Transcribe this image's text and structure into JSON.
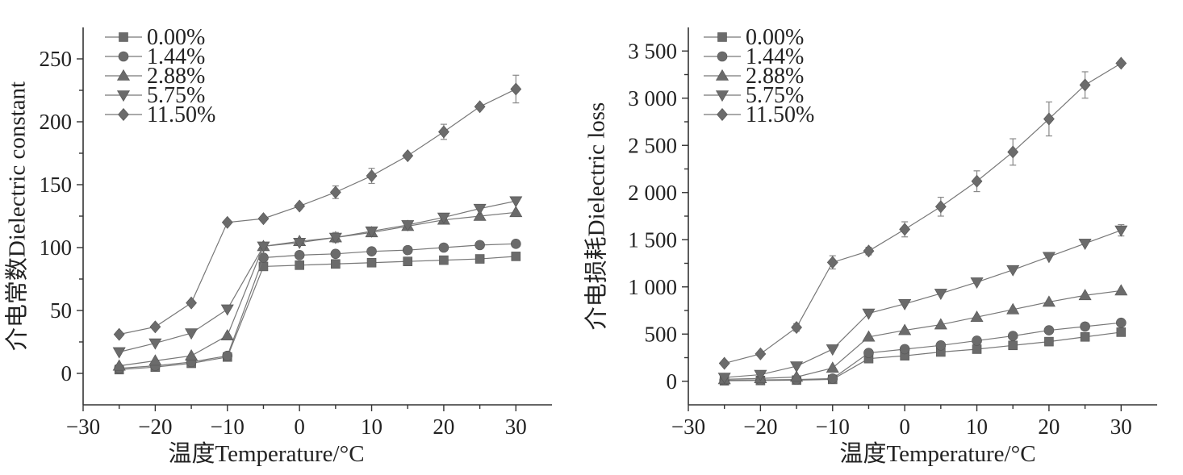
{
  "chart_data": [
    {
      "type": "line",
      "xlabel": "温度Temperature/°C",
      "ylabel": "介电常数Dielectric constant",
      "xlim": [
        -30,
        35
      ],
      "ylim": [
        -25,
        275
      ],
      "xticks": [
        -30,
        -20,
        -10,
        0,
        10,
        20,
        30
      ],
      "xtick_labels": [
        "−30",
        "−20",
        "−10",
        "0",
        "10",
        "20",
        "30"
      ],
      "yticks": [
        0,
        50,
        100,
        150,
        200,
        250
      ],
      "ytick_labels": [
        "0",
        "50",
        "100",
        "150",
        "200",
        "250"
      ],
      "legend_position": "top-left",
      "grid": false,
      "x": [
        -25,
        -20,
        -15,
        -10,
        -5,
        0,
        5,
        10,
        15,
        20,
        25,
        30
      ],
      "series": [
        {
          "name": "0.00%",
          "marker": "square",
          "values": [
            3,
            5,
            8,
            13,
            85,
            86,
            87,
            88,
            89,
            90,
            91,
            93
          ],
          "errors": [
            0,
            0,
            0,
            0,
            0,
            0,
            0,
            0,
            0,
            0,
            0,
            0
          ]
        },
        {
          "name": "1.44%",
          "marker": "circle",
          "values": [
            4,
            6,
            9,
            14,
            92,
            94,
            95,
            97,
            98,
            100,
            102,
            103
          ],
          "errors": [
            0,
            0,
            0,
            0,
            0,
            0,
            0,
            0,
            0,
            0,
            0,
            0
          ]
        },
        {
          "name": "2.88%",
          "marker": "triangle-up",
          "values": [
            6,
            10,
            14,
            30,
            101,
            105,
            108,
            112,
            117,
            122,
            125,
            128
          ],
          "errors": [
            0,
            0,
            0,
            0,
            0,
            0,
            0,
            0,
            0,
            0,
            0,
            0
          ]
        },
        {
          "name": "5.75%",
          "marker": "triangle-down",
          "values": [
            17,
            24,
            32,
            51,
            101,
            104,
            108,
            113,
            118,
            124,
            131,
            137
          ],
          "errors": [
            0,
            0,
            0,
            0,
            0,
            0,
            4,
            0,
            0,
            0,
            0,
            0
          ]
        },
        {
          "name": "11.50%",
          "marker": "diamond",
          "values": [
            31,
            37,
            56,
            120,
            123,
            133,
            144,
            157,
            173,
            192,
            212,
            226
          ],
          "errors": [
            0,
            0,
            0,
            0,
            0,
            0,
            5,
            6,
            0,
            6,
            0,
            11
          ]
        }
      ]
    },
    {
      "type": "line",
      "xlabel": "温度Temperature/°C",
      "ylabel": "介电损耗Dielectric loss",
      "xlim": [
        -30,
        35
      ],
      "ylim": [
        -250,
        3750
      ],
      "xticks": [
        -30,
        -20,
        -10,
        0,
        10,
        20,
        30
      ],
      "xtick_labels": [
        "−30",
        "−20",
        "−10",
        "0",
        "10",
        "20",
        "30"
      ],
      "yticks": [
        0,
        500,
        1000,
        1500,
        2000,
        2500,
        3000,
        3500
      ],
      "ytick_labels": [
        "0",
        "500",
        "1 000",
        "1 500",
        "2 000",
        "2 500",
        "3 000",
        "3 500"
      ],
      "legend_position": "top-left",
      "grid": false,
      "x": [
        -25,
        -20,
        -15,
        -10,
        -5,
        0,
        5,
        10,
        15,
        20,
        25,
        30
      ],
      "series": [
        {
          "name": "0.00%",
          "marker": "square",
          "values": [
            5,
            8,
            12,
            20,
            240,
            270,
            310,
            340,
            380,
            420,
            470,
            520
          ],
          "errors": [
            0,
            0,
            0,
            0,
            0,
            0,
            0,
            0,
            0,
            0,
            0,
            0
          ]
        },
        {
          "name": "1.44%",
          "marker": "circle",
          "values": [
            10,
            14,
            18,
            28,
            300,
            340,
            380,
            430,
            480,
            540,
            580,
            620
          ],
          "errors": [
            0,
            0,
            0,
            0,
            0,
            0,
            0,
            0,
            0,
            0,
            0,
            0
          ]
        },
        {
          "name": "2.88%",
          "marker": "triangle-up",
          "values": [
            20,
            30,
            45,
            140,
            470,
            540,
            600,
            680,
            760,
            840,
            910,
            960
          ],
          "errors": [
            0,
            0,
            0,
            0,
            0,
            0,
            0,
            0,
            0,
            0,
            0,
            0
          ]
        },
        {
          "name": "5.75%",
          "marker": "triangle-down",
          "values": [
            40,
            70,
            160,
            340,
            720,
            820,
            930,
            1050,
            1180,
            1320,
            1460,
            1600
          ],
          "errors": [
            0,
            0,
            0,
            0,
            0,
            0,
            0,
            0,
            0,
            0,
            0,
            60
          ]
        },
        {
          "name": "11.50%",
          "marker": "diamond",
          "values": [
            190,
            290,
            570,
            1260,
            1380,
            1610,
            1850,
            2120,
            2430,
            2780,
            3140,
            3370
          ],
          "errors": [
            0,
            0,
            40,
            70,
            40,
            80,
            100,
            110,
            140,
            180,
            140,
            0
          ]
        }
      ]
    }
  ]
}
